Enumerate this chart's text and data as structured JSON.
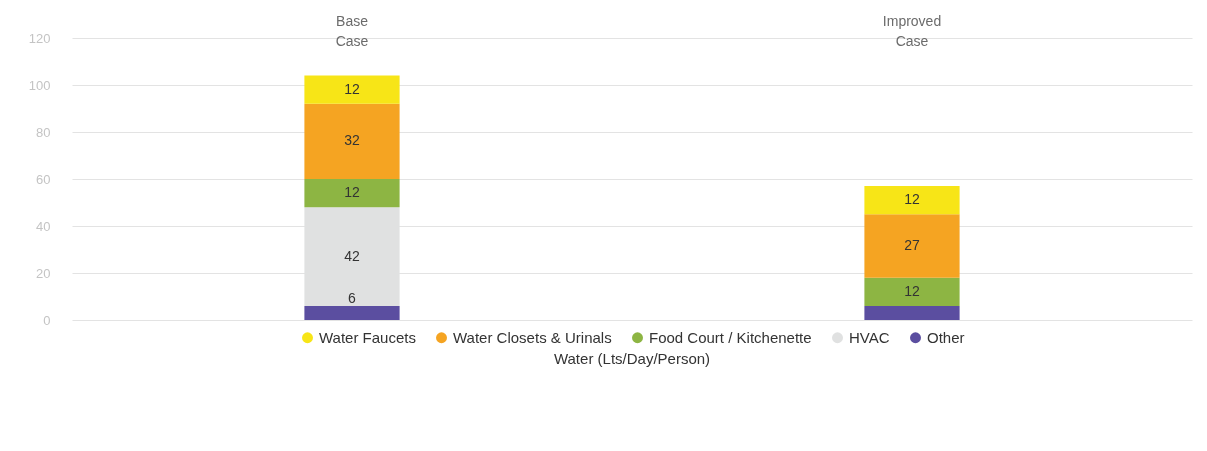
{
  "chart_data": {
    "type": "bar",
    "stacked": true,
    "categories": [
      "Base Case",
      "Improved Case"
    ],
    "xlabel": "Water (Lts/Day/Person)",
    "ylim": [
      0,
      120
    ],
    "yticks": [
      0,
      20,
      40,
      60,
      80,
      100,
      120
    ],
    "grid": "y",
    "legend": "bottom",
    "marker": "circle",
    "series": [
      {
        "name": "Other",
        "color": "#5b4ea0",
        "values": [
          6,
          6
        ],
        "value_labels": [
          "6",
          null
        ]
      },
      {
        "name": "HVAC",
        "color": "#e0e1e1",
        "values": [
          42,
          0
        ],
        "value_labels": [
          "42",
          null
        ]
      },
      {
        "name": "Food Court / Kitchenette",
        "color": "#8db543",
        "values": [
          12,
          12
        ],
        "value_labels": [
          "12",
          "12"
        ]
      },
      {
        "name": "Water Closets & Urinals",
        "color": "#f5a422",
        "values": [
          32,
          27
        ],
        "value_labels": [
          "32",
          "27"
        ]
      },
      {
        "name": "Water Faucets",
        "color": "#f7e517",
        "values": [
          12,
          12
        ],
        "value_labels": [
          "12",
          "12"
        ]
      }
    ]
  }
}
